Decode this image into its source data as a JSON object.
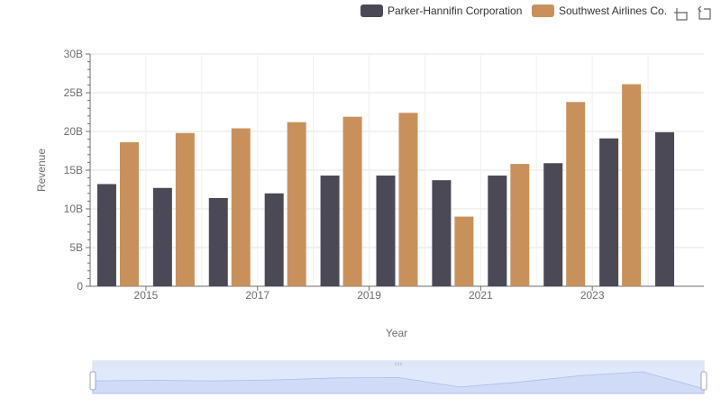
{
  "chart_data": {
    "type": "bar",
    "x": [
      2014,
      2015,
      2016,
      2017,
      2018,
      2019,
      2020,
      2021,
      2022,
      2023,
      2024
    ],
    "x_tick_labels": [
      "2015",
      "2017",
      "2019",
      "2021",
      "2023"
    ],
    "series": [
      {
        "name": "Parker-Hannifin Corporation",
        "color": "#4a4955",
        "values": [
          13.2,
          12.7,
          11.4,
          12.0,
          14.3,
          14.3,
          13.7,
          14.3,
          15.9,
          19.1,
          19.9
        ]
      },
      {
        "name": "Southwest Airlines Co.",
        "color": "#c8915c",
        "values": [
          18.6,
          19.8,
          20.4,
          21.2,
          21.9,
          22.4,
          9.0,
          15.8,
          23.8,
          26.1,
          null
        ]
      }
    ],
    "xlabel": "Year",
    "ylabel": "Revenue",
    "y_ticks": [
      "0",
      "5B",
      "10B",
      "15B",
      "20B",
      "25B",
      "30B"
    ],
    "ylim": [
      0,
      30
    ],
    "grid": true,
    "legend_position": "top-right"
  },
  "toolbar": {
    "icons": [
      "zoom-icon",
      "reset-zoom-icon"
    ]
  }
}
